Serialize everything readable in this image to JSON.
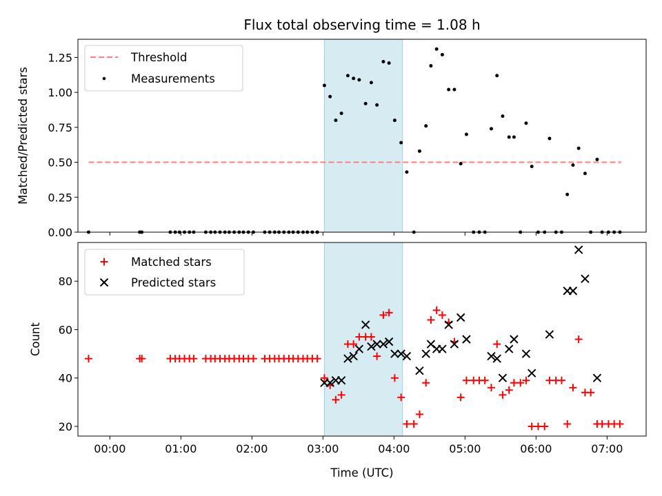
{
  "chart_data": [
    {
      "panel": "top",
      "type": "scatter",
      "title": "Flux total observing time = 1.08 h",
      "xlabel": "",
      "ylabel": "Matched/Predicted stars",
      "xlim": [
        -0.45,
        7.55
      ],
      "ylim": [
        0,
        1.38
      ],
      "yticks": [
        "0.00",
        "0.25",
        "0.50",
        "0.75",
        "1.00",
        "1.25"
      ],
      "shaded_span": [
        3.02,
        4.12
      ],
      "legend": "top-left",
      "series": [
        {
          "name": "Threshold",
          "style": "dashed-line",
          "color": "#ff7f7f",
          "x": [
            -0.3,
            7.2
          ],
          "y": [
            0.5,
            0.5
          ]
        },
        {
          "name": "Measurements",
          "style": "dot",
          "color": "#000000",
          "points": [
            [
              -0.3,
              0
            ],
            [
              0.42,
              0
            ],
            [
              0.45,
              0
            ],
            [
              0.85,
              0
            ],
            [
              0.92,
              0
            ],
            [
              0.98,
              0
            ],
            [
              1.05,
              0
            ],
            [
              1.12,
              0
            ],
            [
              1.18,
              0
            ],
            [
              1.35,
              0
            ],
            [
              1.42,
              0
            ],
            [
              1.48,
              0
            ],
            [
              1.55,
              0
            ],
            [
              1.62,
              0
            ],
            [
              1.68,
              0
            ],
            [
              1.75,
              0
            ],
            [
              1.82,
              0
            ],
            [
              1.88,
              0
            ],
            [
              1.95,
              0
            ],
            [
              2.02,
              0
            ],
            [
              2.18,
              0
            ],
            [
              2.25,
              0
            ],
            [
              2.32,
              0
            ],
            [
              2.38,
              0
            ],
            [
              2.45,
              0
            ],
            [
              2.52,
              0
            ],
            [
              2.58,
              0
            ],
            [
              2.65,
              0
            ],
            [
              2.72,
              0
            ],
            [
              2.78,
              0
            ],
            [
              2.85,
              0
            ],
            [
              2.92,
              0
            ],
            [
              3.02,
              1.05
            ],
            [
              3.1,
              0.97
            ],
            [
              3.18,
              0.8
            ],
            [
              3.26,
              0.85
            ],
            [
              3.35,
              1.12
            ],
            [
              3.43,
              1.1
            ],
            [
              3.51,
              1.09
            ],
            [
              3.6,
              0.92
            ],
            [
              3.68,
              1.07
            ],
            [
              3.76,
              0.91
            ],
            [
              3.85,
              1.22
            ],
            [
              3.93,
              1.21
            ],
            [
              4.01,
              0.8
            ],
            [
              4.1,
              0.64
            ],
            [
              4.18,
              0.43
            ],
            [
              4.28,
              0
            ],
            [
              4.36,
              0.58
            ],
            [
              4.45,
              0.76
            ],
            [
              4.52,
              1.19
            ],
            [
              4.6,
              1.31
            ],
            [
              4.68,
              1.27
            ],
            [
              4.77,
              1.02
            ],
            [
              4.85,
              1.02
            ],
            [
              4.94,
              0.49
            ],
            [
              5.02,
              0.7
            ],
            [
              5.12,
              0
            ],
            [
              5.2,
              0
            ],
            [
              5.28,
              0
            ],
            [
              5.37,
              0.74
            ],
            [
              5.45,
              1.12
            ],
            [
              5.53,
              0.83
            ],
            [
              5.62,
              0.68
            ],
            [
              5.69,
              0.68
            ],
            [
              5.78,
              0
            ],
            [
              5.86,
              0.78
            ],
            [
              5.94,
              0.47
            ],
            [
              6.03,
              0
            ],
            [
              6.12,
              0
            ],
            [
              6.19,
              0.67
            ],
            [
              6.28,
              0
            ],
            [
              6.36,
              0
            ],
            [
              6.44,
              0.27
            ],
            [
              6.52,
              0.48
            ],
            [
              6.6,
              0.6
            ],
            [
              6.69,
              0.42
            ],
            [
              6.77,
              0
            ],
            [
              6.86,
              0.52
            ],
            [
              6.93,
              0
            ],
            [
              7.02,
              0
            ],
            [
              7.1,
              0
            ],
            [
              7.18,
              0
            ]
          ]
        }
      ]
    },
    {
      "panel": "bottom",
      "type": "scatter",
      "title": "",
      "xlabel": "Time (UTC)",
      "ylabel": "Count",
      "xlim": [
        -0.45,
        7.55
      ],
      "ylim": [
        16,
        96
      ],
      "xticks": [
        "00:00",
        "01:00",
        "02:00",
        "03:00",
        "04:00",
        "05:00",
        "06:00",
        "07:00"
      ],
      "yticks": [
        "20",
        "40",
        "60",
        "80"
      ],
      "shaded_span": [
        3.02,
        4.12
      ],
      "legend": "top-left",
      "series": [
        {
          "name": "Matched stars",
          "style": "plus",
          "color": "#ff0000",
          "points": [
            [
              -0.3,
              48
            ],
            [
              0.42,
              48
            ],
            [
              0.45,
              48
            ],
            [
              0.85,
              48
            ],
            [
              0.92,
              48
            ],
            [
              0.98,
              48
            ],
            [
              1.05,
              48
            ],
            [
              1.12,
              48
            ],
            [
              1.18,
              48
            ],
            [
              1.35,
              48
            ],
            [
              1.42,
              48
            ],
            [
              1.48,
              48
            ],
            [
              1.55,
              48
            ],
            [
              1.62,
              48
            ],
            [
              1.68,
              48
            ],
            [
              1.75,
              48
            ],
            [
              1.82,
              48
            ],
            [
              1.88,
              48
            ],
            [
              1.95,
              48
            ],
            [
              2.02,
              48
            ],
            [
              2.18,
              48
            ],
            [
              2.25,
              48
            ],
            [
              2.32,
              48
            ],
            [
              2.38,
              48
            ],
            [
              2.45,
              48
            ],
            [
              2.52,
              48
            ],
            [
              2.58,
              48
            ],
            [
              2.65,
              48
            ],
            [
              2.72,
              48
            ],
            [
              2.78,
              48
            ],
            [
              2.85,
              48
            ],
            [
              2.92,
              48
            ],
            [
              3.02,
              40
            ],
            [
              3.1,
              37
            ],
            [
              3.18,
              31
            ],
            [
              3.26,
              33
            ],
            [
              3.35,
              54
            ],
            [
              3.43,
              54
            ],
            [
              3.51,
              57
            ],
            [
              3.6,
              57
            ],
            [
              3.68,
              57
            ],
            [
              3.76,
              49
            ],
            [
              3.85,
              66
            ],
            [
              3.93,
              67
            ],
            [
              4.01,
              40
            ],
            [
              4.1,
              32
            ],
            [
              4.18,
              21
            ],
            [
              4.28,
              21
            ],
            [
              4.36,
              25
            ],
            [
              4.45,
              38
            ],
            [
              4.52,
              64
            ],
            [
              4.6,
              68
            ],
            [
              4.68,
              66
            ],
            [
              4.77,
              63
            ],
            [
              4.85,
              55
            ],
            [
              4.94,
              32
            ],
            [
              5.02,
              39
            ],
            [
              5.12,
              39
            ],
            [
              5.2,
              39
            ],
            [
              5.28,
              39
            ],
            [
              5.37,
              36
            ],
            [
              5.45,
              54
            ],
            [
              5.53,
              33
            ],
            [
              5.62,
              35
            ],
            [
              5.69,
              38
            ],
            [
              5.78,
              38
            ],
            [
              5.86,
              39
            ],
            [
              5.94,
              20
            ],
            [
              6.03,
              20
            ],
            [
              6.12,
              20
            ],
            [
              6.19,
              39
            ],
            [
              6.28,
              39
            ],
            [
              6.36,
              39
            ],
            [
              6.44,
              21
            ],
            [
              6.52,
              36
            ],
            [
              6.6,
              56
            ],
            [
              6.69,
              34
            ],
            [
              6.77,
              34
            ],
            [
              6.86,
              21
            ],
            [
              6.93,
              21
            ],
            [
              7.02,
              21
            ],
            [
              7.1,
              21
            ],
            [
              7.18,
              21
            ]
          ]
        },
        {
          "name": "Predicted stars",
          "style": "x",
          "color": "#000000",
          "points": [
            [
              3.02,
              38
            ],
            [
              3.1,
              38
            ],
            [
              3.18,
              39
            ],
            [
              3.26,
              39
            ],
            [
              3.35,
              48
            ],
            [
              3.43,
              49
            ],
            [
              3.51,
              52
            ],
            [
              3.6,
              62
            ],
            [
              3.68,
              53
            ],
            [
              3.76,
              54
            ],
            [
              3.85,
              54
            ],
            [
              3.93,
              55
            ],
            [
              4.01,
              50
            ],
            [
              4.1,
              50
            ],
            [
              4.18,
              49
            ],
            [
              4.36,
              43
            ],
            [
              4.45,
              50
            ],
            [
              4.52,
              54
            ],
            [
              4.6,
              52
            ],
            [
              4.68,
              52
            ],
            [
              4.77,
              62
            ],
            [
              4.85,
              54
            ],
            [
              4.94,
              65
            ],
            [
              5.02,
              56
            ],
            [
              5.37,
              49
            ],
            [
              5.45,
              48
            ],
            [
              5.53,
              40
            ],
            [
              5.62,
              52
            ],
            [
              5.69,
              56
            ],
            [
              5.86,
              50
            ],
            [
              5.94,
              42
            ],
            [
              6.19,
              58
            ],
            [
              6.44,
              76
            ],
            [
              6.52,
              76
            ],
            [
              6.6,
              93
            ],
            [
              6.69,
              81
            ],
            [
              6.86,
              40
            ]
          ]
        }
      ]
    }
  ]
}
